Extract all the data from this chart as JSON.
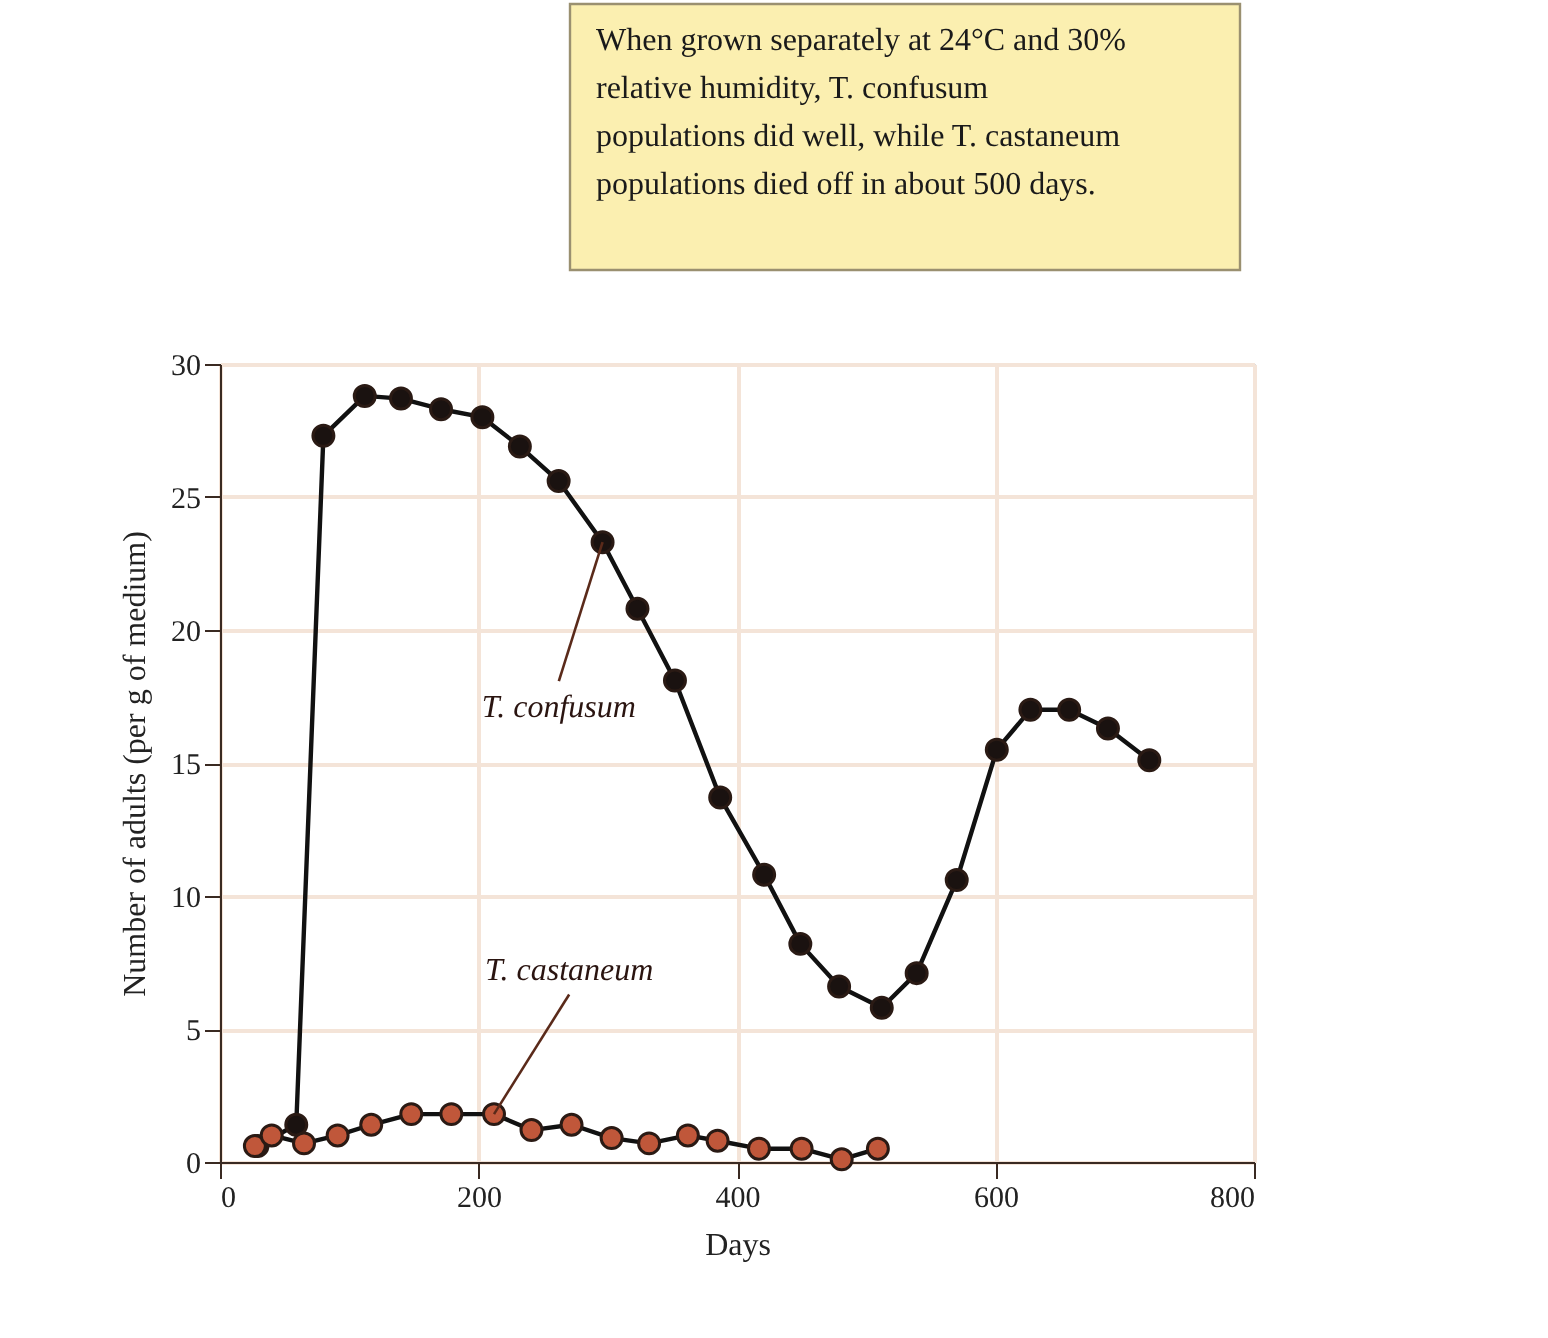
{
  "chart_data": {
    "type": "line",
    "xlabel": "Days",
    "ylabel": "Number of adults (per g of medium)",
    "xlim": [
      0,
      800
    ],
    "xticks": [
      0,
      200,
      400,
      600,
      800
    ],
    "ylim": [
      0,
      30
    ],
    "yticks": [
      0,
      5,
      10,
      15,
      20,
      25,
      30
    ],
    "grid": true,
    "marker": "circle",
    "line_style": "solid",
    "annotations": [
      "When grown separately at 24°C and 30% relative humidity, T. confusum populations did well, while T. castaneum populations died off in about 500 days."
    ],
    "series": [
      {
        "name": "T. confusum",
        "color": "#1a1210",
        "x": [
          29,
          59,
          80,
          112,
          140,
          171,
          203,
          232,
          262,
          296,
          323,
          352,
          387,
          421,
          449,
          479,
          512,
          539,
          570,
          601,
          627,
          657,
          687,
          719
        ],
        "values": [
          0.6,
          1.4,
          27.3,
          28.8,
          28.7,
          28.3,
          28.0,
          26.9,
          25.6,
          23.3,
          20.8,
          18.1,
          13.7,
          10.8,
          8.2,
          6.6,
          5.8,
          7.1,
          10.6,
          15.5,
          17.0,
          17.0,
          16.3,
          15.1
        ]
      },
      {
        "name": "T. castaneum",
        "color": "#c0573a",
        "x": [
          27,
          40,
          65,
          91,
          117,
          148,
          179,
          212,
          241,
          272,
          303,
          332,
          362,
          385,
          417,
          450,
          481,
          509
        ],
        "values": [
          0.6,
          1.0,
          0.7,
          1.0,
          1.4,
          1.8,
          1.8,
          1.8,
          1.2,
          1.4,
          0.9,
          0.7,
          1.0,
          0.8,
          0.5,
          0.5,
          0.1,
          0.5
        ]
      }
    ]
  }
}
